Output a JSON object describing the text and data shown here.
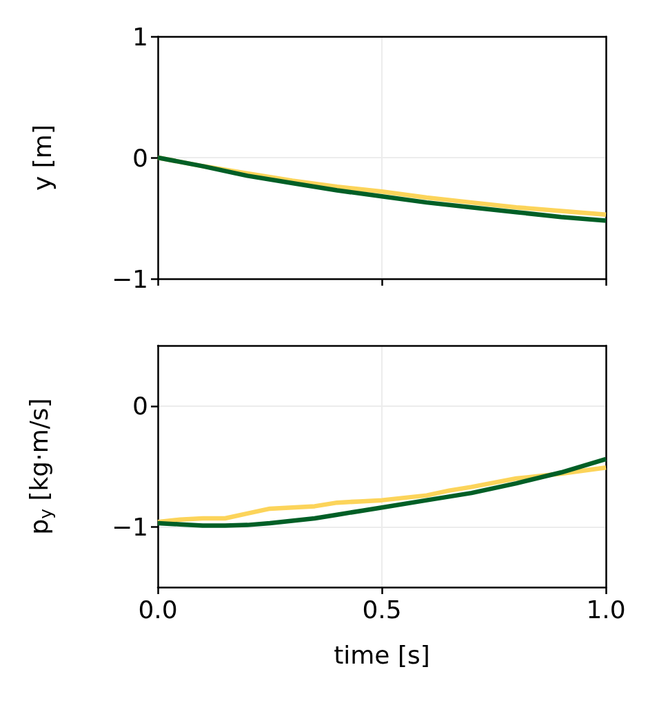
{
  "chart_data": [
    {
      "type": "line",
      "ylabel": "y [m]",
      "x": [
        0,
        0.1,
        0.2,
        0.3,
        0.4,
        0.5,
        0.6,
        0.7,
        0.8,
        0.9,
        1.0
      ],
      "series": [
        {
          "color": "#fcd45a",
          "values": [
            0,
            -0.07,
            -0.13,
            -0.19,
            -0.24,
            -0.28,
            -0.33,
            -0.37,
            -0.41,
            -0.44,
            -0.47
          ]
        },
        {
          "color": "#005f26",
          "values": [
            0,
            -0.07,
            -0.15,
            -0.21,
            -0.27,
            -0.32,
            -0.37,
            -0.41,
            -0.45,
            -0.49,
            -0.52
          ]
        }
      ],
      "xlim": [
        0,
        1
      ],
      "xticks": [
        0,
        0.5,
        1
      ],
      "ylim": [
        -1,
        1
      ],
      "yticks": [
        {
          "value": -1,
          "label": "−1"
        },
        {
          "value": 0,
          "label": "0"
        },
        {
          "value": 1,
          "label": "1"
        }
      ],
      "tick_labels": "y",
      "grid": true,
      "marker": "none",
      "line_style": "solid"
    },
    {
      "type": "line",
      "xlabel": "time [s]",
      "ylabel": "p$_{y}$ [kg·m/s]",
      "x": [
        0,
        0.05,
        0.1,
        0.15,
        0.2,
        0.25,
        0.3,
        0.35,
        0.4,
        0.45,
        0.5,
        0.6,
        0.65,
        0.7,
        0.8,
        0.9,
        1.0
      ],
      "series": [
        {
          "color": "#fcd45a",
          "values": [
            -0.96,
            -0.94,
            -0.93,
            -0.93,
            -0.89,
            -0.85,
            -0.84,
            -0.83,
            -0.8,
            -0.79,
            -0.78,
            -0.74,
            -0.7,
            -0.67,
            -0.6,
            -0.56,
            -0.51
          ]
        },
        {
          "color": "#005f26",
          "values": [
            -0.97,
            -0.98,
            -0.99,
            -0.99,
            -0.985,
            -0.97,
            -0.95,
            -0.93,
            -0.9,
            -0.87,
            -0.84,
            -0.78,
            -0.75,
            -0.72,
            -0.64,
            -0.55,
            -0.44
          ]
        }
      ],
      "xlim": [
        0,
        1
      ],
      "xticks": [
        {
          "value": 0,
          "label": "0.0"
        },
        {
          "value": 0.5,
          "label": "0.5"
        },
        {
          "value": 1,
          "label": "1.0"
        }
      ],
      "ylim": [
        -1.5,
        0.5
      ],
      "yticks": [
        {
          "value": -1,
          "label": "−1"
        },
        {
          "value": 0,
          "label": "0"
        }
      ],
      "grid": true,
      "marker": "none",
      "line_style": "solid"
    }
  ]
}
